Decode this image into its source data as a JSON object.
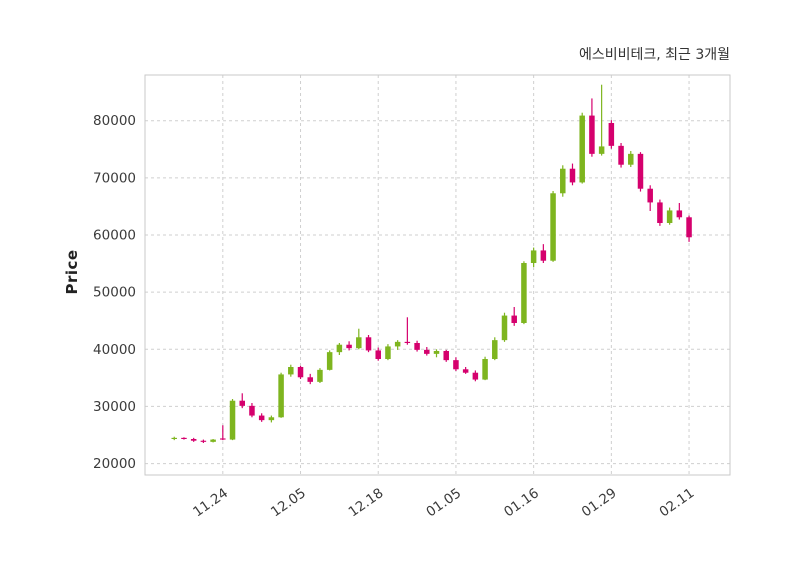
{
  "chart_data": {
    "type": "candlestick",
    "title": "에스비비테크, 최근 3개월",
    "ylabel": "Price",
    "ylim": [
      18000,
      88000
    ],
    "yticks": [
      20000,
      30000,
      40000,
      50000,
      60000,
      70000,
      80000
    ],
    "xtick_labels": [
      "11.24",
      "12.05",
      "12.18",
      "01.05",
      "01.16",
      "01.29",
      "02.11"
    ],
    "xtick_candle_indices": [
      5,
      13,
      21,
      29,
      37,
      45,
      53
    ],
    "grid": true,
    "legend": "none",
    "candles_ohlc": [
      [
        24300,
        24700,
        24100,
        24500
      ],
      [
        24500,
        24600,
        24200,
        24300
      ],
      [
        24300,
        24500,
        23800,
        24000
      ],
      [
        24000,
        24200,
        23600,
        23800
      ],
      [
        23800,
        24300,
        23700,
        24200
      ],
      [
        24400,
        26700,
        24100,
        24200
      ],
      [
        24200,
        31300,
        24100,
        31000
      ],
      [
        31000,
        32300,
        29700,
        30100
      ],
      [
        30100,
        30600,
        28100,
        28400
      ],
      [
        28400,
        28800,
        27300,
        27600
      ],
      [
        27600,
        28400,
        27200,
        28100
      ],
      [
        28100,
        35900,
        28000,
        35600
      ],
      [
        35600,
        37300,
        35200,
        36900
      ],
      [
        36900,
        37100,
        34800,
        35100
      ],
      [
        35100,
        35700,
        33900,
        34300
      ],
      [
        34300,
        36700,
        34100,
        36400
      ],
      [
        36400,
        39800,
        36300,
        39500
      ],
      [
        39500,
        41100,
        39000,
        40800
      ],
      [
        40800,
        41400,
        39800,
        40200
      ],
      [
        40200,
        43600,
        40000,
        42100
      ],
      [
        42100,
        42500,
        39500,
        39800
      ],
      [
        39800,
        40300,
        38000,
        38300
      ],
      [
        38300,
        40900,
        38100,
        40500
      ],
      [
        40500,
        41600,
        39900,
        41300
      ],
      [
        41300,
        45600,
        40800,
        41100
      ],
      [
        41100,
        41500,
        39600,
        39900
      ],
      [
        39900,
        40400,
        38900,
        39200
      ],
      [
        39200,
        40000,
        38600,
        39700
      ],
      [
        39700,
        39900,
        37800,
        38100
      ],
      [
        38100,
        38600,
        36200,
        36500
      ],
      [
        36500,
        36900,
        35700,
        35900
      ],
      [
        35900,
        36300,
        34400,
        34700
      ],
      [
        34700,
        38700,
        34600,
        38300
      ],
      [
        38300,
        42100,
        38100,
        41600
      ],
      [
        41600,
        46400,
        41300,
        45900
      ],
      [
        45900,
        47400,
        44100,
        44600
      ],
      [
        44600,
        55400,
        44400,
        55100
      ],
      [
        55100,
        57800,
        54400,
        57300
      ],
      [
        57300,
        58400,
        55100,
        55500
      ],
      [
        55500,
        67700,
        55300,
        67300
      ],
      [
        67300,
        72200,
        66700,
        71600
      ],
      [
        71600,
        72500,
        68700,
        69200
      ],
      [
        69200,
        81400,
        69000,
        80900
      ],
      [
        80900,
        83900,
        73700,
        74200
      ],
      [
        74200,
        86300,
        73900,
        75500
      ],
      [
        79600,
        80100,
        75100,
        75600
      ],
      [
        75600,
        76100,
        71800,
        72300
      ],
      [
        72300,
        74700,
        71900,
        74200
      ],
      [
        74200,
        74500,
        67600,
        68100
      ],
      [
        68100,
        68700,
        64200,
        65700
      ],
      [
        65700,
        66200,
        61600,
        62100
      ],
      [
        62100,
        64800,
        61800,
        64300
      ],
      [
        64300,
        65600,
        62700,
        63100
      ],
      [
        63100,
        63400,
        58800,
        59600
      ]
    ]
  },
  "colors": {
    "up": "#7eb51f",
    "down": "#d5006d",
    "grid": "#cfcfcf",
    "border": "#c9c9c9",
    "tick_text": "#3b3b3b",
    "background": "#ffffff"
  }
}
